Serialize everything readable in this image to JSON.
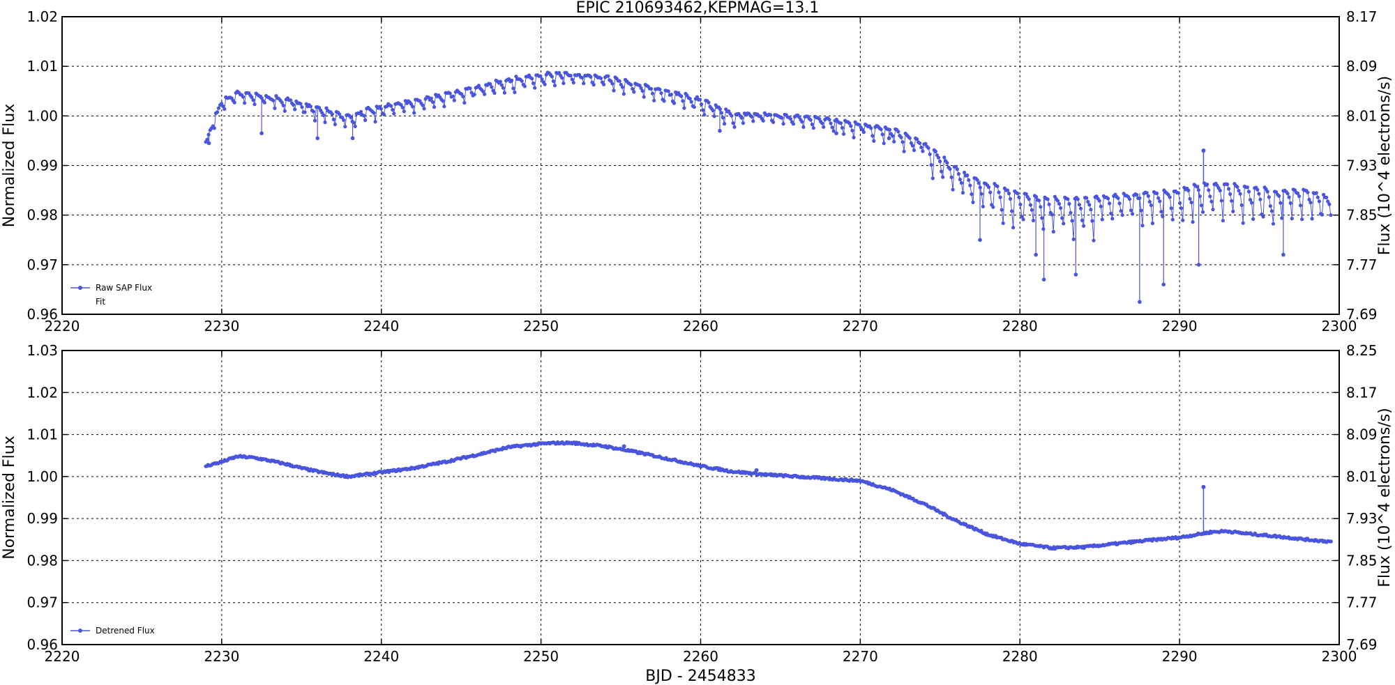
{
  "figure_title": "EPIC 210693462,KEPMAG=13.1",
  "colors": {
    "series": "#4a55dd",
    "grid": "#000000"
  },
  "chart_data": [
    {
      "type": "scatter",
      "xlabel": "",
      "ylabel": "Normalized Flux",
      "ylabel_right": "Flux (10^4 electrons/s)",
      "xlim": [
        2220,
        2300
      ],
      "ylim": [
        0.96,
        1.02
      ],
      "xticks": [
        "2220",
        "2230",
        "2240",
        "2250",
        "2260",
        "2270",
        "2280",
        "2290",
        "2300"
      ],
      "yticks": [
        "0.96",
        "0.97",
        "0.98",
        "0.99",
        "1.00",
        "1.01",
        "1.02"
      ],
      "yticks_right": [
        "7.69",
        "7.77",
        "7.85",
        "7.93",
        "8.01",
        "8.09",
        "8.17"
      ],
      "grid": true,
      "legend_position": "lower-left",
      "legend": [
        "Raw SAP Flux",
        "Fit"
      ],
      "series": [
        {
          "name": "Raw SAP Flux",
          "style": "line-marker",
          "x": [
            2229.0,
            2229.5,
            2230,
            2231,
            2232,
            2233,
            2234,
            2235,
            2236,
            2237,
            2238,
            2239,
            2240,
            2242,
            2244,
            2246,
            2248,
            2250,
            2251,
            2252,
            2254,
            2256,
            2258,
            2260,
            2262,
            2264,
            2266,
            2268,
            2270,
            2272,
            2274,
            2275,
            2276,
            2277,
            2278,
            2279,
            2280,
            2281,
            2282,
            2284,
            2286,
            2288,
            2290,
            2291,
            2292,
            2293,
            2294,
            2296,
            2298,
            2299.5
          ],
          "y": [
            0.9945,
            0.9995,
            1.003,
            1.005,
            1.0045,
            1.004,
            1.0035,
            1.0025,
            1.0018,
            1.001,
            1.0,
            1.0015,
            1.002,
            1.003,
            1.0045,
            1.006,
            1.0075,
            1.0085,
            1.0088,
            1.0085,
            1.008,
            1.0065,
            1.005,
            1.0035,
            1.0005,
            1.0005,
            1.0,
            0.9995,
            0.9985,
            0.9975,
            0.9945,
            0.992,
            0.9895,
            0.9875,
            0.9865,
            0.9855,
            0.9845,
            0.9838,
            0.9835,
            0.9835,
            0.984,
            0.9845,
            0.985,
            0.986,
            0.9865,
            0.9865,
            0.986,
            0.985,
            0.985,
            0.9835
          ],
          "dips": [
            {
              "x": 2229.2,
              "y": 0.9945
            },
            {
              "x": 2232.5,
              "y": 0.9965
            },
            {
              "x": 2236.0,
              "y": 0.9955
            },
            {
              "x": 2238.2,
              "y": 0.9955
            },
            {
              "x": 2261.2,
              "y": 0.997
            },
            {
              "x": 2268.5,
              "y": 0.9965
            },
            {
              "x": 2271.8,
              "y": 0.9955
            },
            {
              "x": 2277.5,
              "y": 0.975
            },
            {
              "x": 2281.0,
              "y": 0.972
            },
            {
              "x": 2281.5,
              "y": 0.967
            },
            {
              "x": 2283.5,
              "y": 0.968
            },
            {
              "x": 2287.5,
              "y": 0.9625
            },
            {
              "x": 2289.0,
              "y": 0.966
            },
            {
              "x": 2291.2,
              "y": 0.97
            },
            {
              "x": 2296.5,
              "y": 0.972
            }
          ],
          "outliers": [
            {
              "x": 2291.5,
              "y": 0.993
            }
          ]
        },
        {
          "name": "Fit",
          "style": "none",
          "x": [],
          "y": []
        }
      ]
    },
    {
      "type": "scatter",
      "xlabel": "BJD - 2454833",
      "ylabel": "Normalized Flux",
      "ylabel_right": "Flux (10^4 electrons/s)",
      "xlim": [
        2220,
        2300
      ],
      "ylim": [
        0.96,
        1.03
      ],
      "xticks": [
        "2220",
        "2230",
        "2240",
        "2250",
        "2260",
        "2270",
        "2280",
        "2290",
        "2300"
      ],
      "yticks": [
        "0.96",
        "0.97",
        "0.98",
        "0.99",
        "1.00",
        "1.01",
        "1.02",
        "1.03"
      ],
      "yticks_right": [
        "7.69",
        "7.77",
        "7.85",
        "7.93",
        "8.01",
        "8.09",
        "8.17",
        "8.25"
      ],
      "grid": true,
      "legend_position": "lower-left",
      "legend": [
        "Detrened Flux"
      ],
      "series": [
        {
          "name": "Detrened Flux",
          "style": "line-marker",
          "x": [
            2229.0,
            2230,
            2231,
            2232,
            2233,
            2234,
            2235,
            2236,
            2237,
            2238,
            2239,
            2240,
            2242,
            2244,
            2246,
            2248,
            2250,
            2251,
            2252,
            2254,
            2256,
            2258,
            2260,
            2262,
            2264,
            2266,
            2268,
            2270,
            2272,
            2274,
            2276,
            2278,
            2280,
            2282,
            2284,
            2286,
            2288,
            2290,
            2292,
            2293,
            2294,
            2296,
            2298,
            2299.5
          ],
          "y": [
            1.0025,
            1.0035,
            1.0048,
            1.0045,
            1.0038,
            1.003,
            1.002,
            1.0012,
            1.0005,
            1.0,
            1.0005,
            1.001,
            1.002,
            1.0035,
            1.0052,
            1.007,
            1.0078,
            1.008,
            1.008,
            1.0072,
            1.0058,
            1.0042,
            1.0025,
            1.0012,
            1.0005,
            1.0,
            0.9995,
            0.999,
            0.9968,
            0.9935,
            0.9895,
            0.9862,
            0.984,
            0.983,
            0.9832,
            0.984,
            0.9848,
            0.9855,
            0.9868,
            0.987,
            0.9865,
            0.9858,
            0.985,
            0.9845
          ],
          "outliers": [
            {
              "x": 2291.5,
              "y": 0.9975
            },
            {
              "x": 2263.5,
              "y": 1.0015
            },
            {
              "x": 2255.2,
              "y": 1.0072
            }
          ]
        }
      ]
    }
  ]
}
